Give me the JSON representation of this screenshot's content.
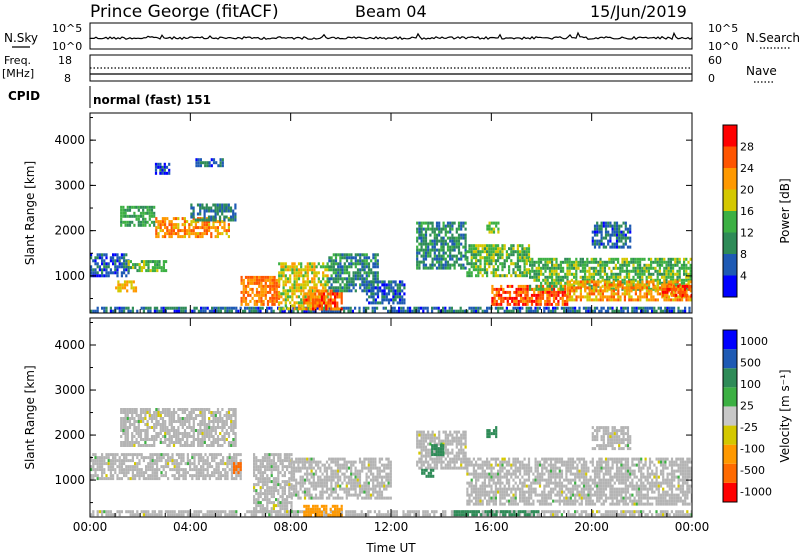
{
  "header": {
    "station": "Prince George (fitACF)",
    "beam": "Beam 04",
    "date": "15/Jun/2019"
  },
  "summary": {
    "nsky_label": "N.Sky",
    "nsky_ticks": [
      "10^5",
      "10^0"
    ],
    "nsearch_label": "N.Search",
    "nsearch_ticks": [
      "10^5",
      "10^0"
    ],
    "freq_label": "Freq.",
    "freq_unit": "[MHz]",
    "freq_ticks": [
      "18",
      "8"
    ],
    "nave_label": "Nave",
    "nave_ticks": [
      "60",
      "0"
    ],
    "cpid_label": "CPID",
    "cpid_value": "normal (fast) 151"
  },
  "colors": {
    "power": [
      "#0000ff",
      "#1e5ab4",
      "#2e8b57",
      "#3cb043",
      "#d4c800",
      "#ff9900",
      "#ff5500",
      "#ff0000"
    ],
    "velocity": [
      "#ff0000",
      "#ff6a00",
      "#ff9900",
      "#d4c800",
      "#c8c8c8",
      "#3cb043",
      "#2e8b57",
      "#1e5ab4",
      "#0000ff"
    ],
    "ground_scatter": "#b4b4b4"
  },
  "chart_data": [
    {
      "type": "heatmap",
      "name": "power",
      "ylabel": "Slant Range [km]",
      "xlabel": "",
      "x_ticks": [
        "00:00",
        "04:00",
        "08:00",
        "12:00",
        "16:00",
        "20:00",
        "00:00"
      ],
      "y_ticks": [
        "1000",
        "2000",
        "3000",
        "4000"
      ],
      "xlim": [
        0,
        24
      ],
      "ylim": [
        180,
        4600
      ],
      "colorbar_label": "Power [dB]",
      "colorbar_ticks": [
        "4",
        "8",
        "12",
        "16",
        "20",
        "24",
        "28"
      ],
      "colorbar_range": [
        0,
        32
      ],
      "regions": [
        {
          "t0": 0.0,
          "t1": 24.0,
          "r0": 200,
          "r1": 320,
          "v": 7
        },
        {
          "t0": 0.0,
          "t1": 1.5,
          "r0": 1000,
          "r1": 1500,
          "v": 6
        },
        {
          "t0": 1.0,
          "t1": 1.8,
          "r0": 650,
          "r1": 900,
          "v": 20
        },
        {
          "t0": 1.5,
          "t1": 3.0,
          "r0": 1100,
          "r1": 1350,
          "v": 14
        },
        {
          "t0": 1.2,
          "t1": 2.6,
          "r0": 2100,
          "r1": 2550,
          "v": 12
        },
        {
          "t0": 2.6,
          "t1": 5.5,
          "r0": 1900,
          "r1": 2300,
          "v": 22
        },
        {
          "t0": 4.0,
          "t1": 5.8,
          "r0": 2250,
          "r1": 2600,
          "v": 8
        },
        {
          "t0": 6.0,
          "t1": 7.5,
          "r0": 400,
          "r1": 1000,
          "v": 24
        },
        {
          "t0": 7.5,
          "t1": 9.5,
          "r0": 300,
          "r1": 1300,
          "v": 18
        },
        {
          "t0": 8.5,
          "t1": 10.0,
          "r0": 300,
          "r1": 700,
          "v": 26
        },
        {
          "t0": 9.5,
          "t1": 11.5,
          "r0": 700,
          "r1": 1500,
          "v": 10
        },
        {
          "t0": 11.0,
          "t1": 12.5,
          "r0": 400,
          "r1": 900,
          "v": 6
        },
        {
          "t0": 13.0,
          "t1": 15.0,
          "r0": 1200,
          "r1": 2200,
          "v": 10
        },
        {
          "t0": 15.0,
          "t1": 17.5,
          "r0": 1000,
          "r1": 1700,
          "v": 14
        },
        {
          "t0": 15.8,
          "t1": 16.3,
          "r0": 1950,
          "r1": 2200,
          "v": 16
        },
        {
          "t0": 16.0,
          "t1": 19.0,
          "r0": 350,
          "r1": 800,
          "v": 26
        },
        {
          "t0": 17.5,
          "t1": 24.0,
          "r0": 700,
          "r1": 1400,
          "v": 14
        },
        {
          "t0": 19.0,
          "t1": 24.0,
          "r0": 500,
          "r1": 900,
          "v": 22
        },
        {
          "t0": 22.8,
          "t1": 24.0,
          "r0": 550,
          "r1": 800,
          "v": 27
        },
        {
          "t0": 20.0,
          "t1": 21.5,
          "r0": 1650,
          "r1": 2200,
          "v": 7
        },
        {
          "t0": 4.2,
          "t1": 5.3,
          "r0": 3450,
          "r1": 3600,
          "v": 6
        },
        {
          "t0": 2.5,
          "t1": 3.2,
          "r0": 3300,
          "r1": 3500,
          "v": 5
        }
      ]
    },
    {
      "type": "heatmap",
      "name": "velocity",
      "ylabel": "Slant Range [km]",
      "xlabel": "Time UT",
      "x_ticks": [
        "00:00",
        "04:00",
        "08:00",
        "12:00",
        "16:00",
        "20:00",
        "00:00"
      ],
      "y_ticks": [
        "1000",
        "2000",
        "3000",
        "4000"
      ],
      "xlim": [
        0,
        24
      ],
      "ylim": [
        180,
        4600
      ],
      "colorbar_label": "Velocity [m s⁻¹]",
      "colorbar_ticks": [
        "1000",
        "500",
        "100",
        "25",
        "-25",
        "-100",
        "-500",
        "-1000"
      ],
      "regions": [
        {
          "t0": 0.0,
          "t1": 24.0,
          "r0": 200,
          "r1": 330,
          "v": 0
        },
        {
          "t0": 0.0,
          "t1": 6.0,
          "r0": 1050,
          "r1": 1600,
          "v": 0
        },
        {
          "t0": 1.2,
          "t1": 5.8,
          "r0": 1800,
          "r1": 2600,
          "v": 0
        },
        {
          "t0": 5.7,
          "t1": 6.0,
          "r0": 1150,
          "r1": 1400,
          "v": -700
        },
        {
          "t0": 6.5,
          "t1": 8.0,
          "r0": 300,
          "r1": 1600,
          "v": 0
        },
        {
          "t0": 8.0,
          "t1": 12.0,
          "r0": 600,
          "r1": 1500,
          "v": 0
        },
        {
          "t0": 8.5,
          "t1": 10.0,
          "r0": 250,
          "r1": 450,
          "v": -150
        },
        {
          "t0": 13.0,
          "t1": 15.0,
          "r0": 1300,
          "r1": 2100,
          "v": 0
        },
        {
          "t0": 13.6,
          "t1": 14.1,
          "r0": 1550,
          "r1": 1800,
          "v": 150
        },
        {
          "t0": 13.2,
          "t1": 13.7,
          "r0": 1100,
          "r1": 1250,
          "v": 150
        },
        {
          "t0": 15.8,
          "t1": 16.2,
          "r0": 2000,
          "r1": 2200,
          "v": 150
        },
        {
          "t0": 15.0,
          "t1": 24.0,
          "r0": 500,
          "r1": 1500,
          "v": 0
        },
        {
          "t0": 14.5,
          "t1": 18.0,
          "r0": 230,
          "r1": 330,
          "v": 150
        },
        {
          "t0": 20.0,
          "t1": 21.5,
          "r0": 1700,
          "r1": 2200,
          "v": 0
        }
      ]
    }
  ]
}
